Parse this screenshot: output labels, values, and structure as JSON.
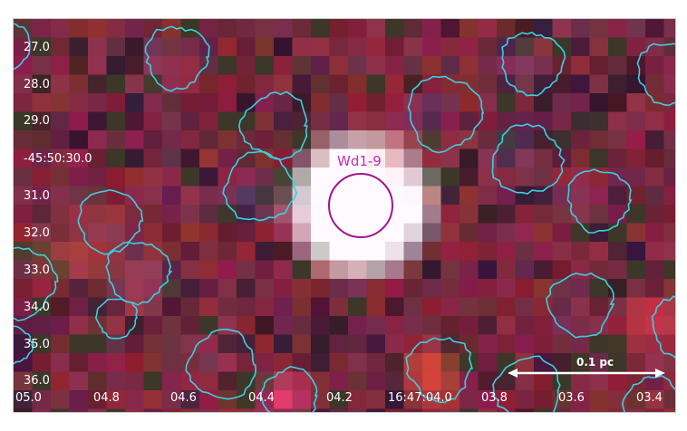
{
  "image": {
    "dec_ticks": [
      "27.0",
      "28.0",
      "29.0",
      "-45:50:30.0",
      "31.0",
      "32.0",
      "33.0",
      "34.0",
      "35.0",
      "36.0"
    ],
    "ra_ticks": [
      "05.0",
      "04.8",
      "04.6",
      "04.4",
      "04.2",
      "16:47:04.0",
      "03.8",
      "03.6",
      "03.4"
    ],
    "source_label": "Wd1-9",
    "scale_bar_label": "0.1 pc",
    "colors": {
      "contour": "#39d0e0",
      "source_circle": "#a0168e",
      "scale_bar": "#ffffff"
    }
  }
}
